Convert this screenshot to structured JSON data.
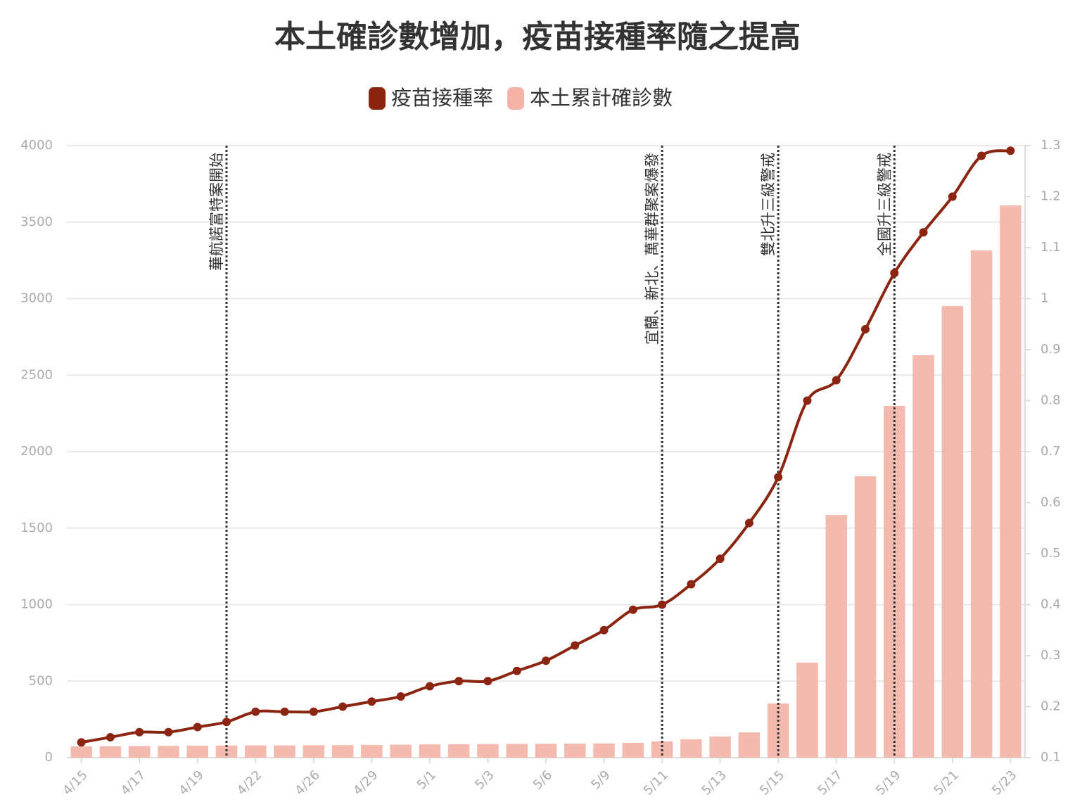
{
  "chart_data": {
    "type": "bar-line",
    "title": "本土確診數增加，疫苗接種率隨之提高",
    "categories": [
      "4/15",
      null,
      "4/17",
      null,
      "4/19",
      null,
      "4/22",
      null,
      "4/26",
      null,
      "4/29",
      null,
      "5/1",
      null,
      "5/3",
      null,
      "5/6",
      null,
      "5/9",
      null,
      "5/11",
      null,
      "5/13",
      null,
      "5/15",
      null,
      "5/17",
      null,
      "5/19",
      null,
      "5/21",
      null,
      "5/23"
    ],
    "series": [
      {
        "name": "疫苗接種率",
        "type": "line",
        "axis": "y2",
        "color": "#8b2410",
        "values": [
          0.13,
          0.14,
          0.15,
          0.15,
          0.16,
          0.17,
          0.19,
          0.19,
          0.19,
          0.2,
          0.21,
          0.22,
          0.24,
          0.25,
          0.25,
          0.27,
          0.29,
          0.32,
          0.35,
          0.39,
          0.4,
          0.44,
          0.49,
          0.56,
          0.65,
          0.8,
          0.84,
          0.94,
          1.05,
          1.13,
          1.2,
          1.28,
          1.29
        ]
      },
      {
        "name": "本土累計確診數",
        "type": "bar",
        "color": "#f4b3a6",
        "values": [
          74,
          75,
          76,
          77,
          78,
          79,
          80,
          80,
          81,
          82,
          83,
          85,
          87,
          88,
          89,
          90,
          91,
          92,
          93,
          97,
          106,
          120,
          138,
          165,
          354,
          621,
          1586,
          1839,
          2299,
          2630,
          2952,
          3315,
          3609
        ]
      }
    ],
    "annotations": [
      {
        "index": 5,
        "text": "華航諾富特案開始"
      },
      {
        "index": 20,
        "text": "宜蘭、新北、萬華群聚案爆發"
      },
      {
        "index": 24,
        "text": "雙北升三級警戒"
      },
      {
        "index": 28,
        "text": "全國升三級警戒"
      }
    ],
    "ylim": [
      0,
      4000
    ],
    "yticks": [
      0,
      500,
      1000,
      1500,
      2000,
      2500,
      3000,
      3500,
      4000
    ],
    "y2lim": [
      0.1,
      1.3
    ],
    "y2ticks": [
      0.1,
      0.2,
      0.3,
      0.4,
      0.5,
      0.6,
      0.7,
      0.8,
      0.9,
      1,
      1.1,
      1.2,
      1.3
    ],
    "grid": true
  }
}
